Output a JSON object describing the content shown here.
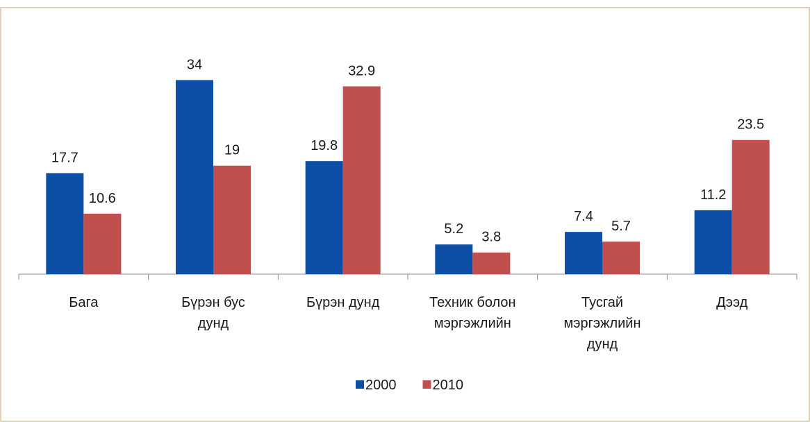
{
  "chart_data": {
    "type": "bar",
    "categories": [
      "Бага",
      "Бүрэн бус\nдунд",
      "Бүрэн дунд",
      "Техник болон\nмэргэжлийн",
      "Тусгай\nмэргэжлийн\nдунд",
      "Дээд"
    ],
    "series": [
      {
        "name": "2000",
        "color": "#0d4ea6",
        "values": [
          17.7,
          34,
          19.8,
          5.2,
          7.4,
          11.2
        ]
      },
      {
        "name": "2010",
        "color": "#c0504d",
        "values": [
          10.6,
          19,
          32.9,
          3.8,
          5.7,
          23.5
        ]
      }
    ],
    "ylim": [
      0,
      40
    ],
    "legend": "bottom"
  }
}
